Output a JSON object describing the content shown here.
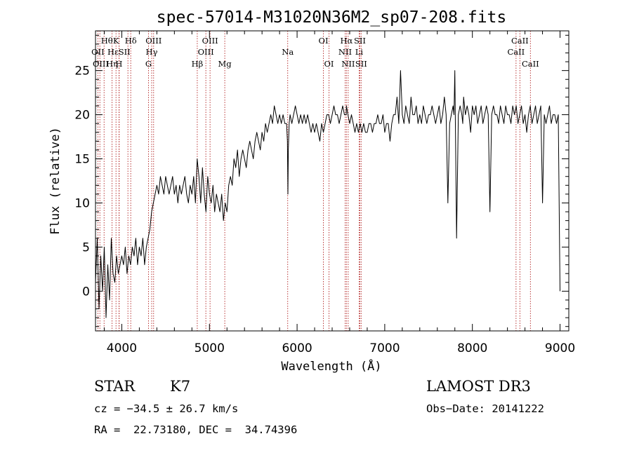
{
  "chart_data": {
    "type": "line",
    "title": "spec-57014-M31020N36M2_sp07-208.fits",
    "xlabel": "Wavelength (Å)",
    "ylabel": "Flux (relative)",
    "xlim": [
      3700,
      9100
    ],
    "ylim": [
      -4.5,
      29.5
    ],
    "xticks": [
      4000,
      5000,
      6000,
      7000,
      8000,
      9000
    ],
    "yticks": [
      0,
      5,
      10,
      15,
      20,
      25
    ],
    "x_minor_step": 200,
    "y_minor_step": 1,
    "grid": false,
    "series": [
      {
        "name": "flux",
        "color": "#000000",
        "x": [
          3700,
          3720,
          3740,
          3760,
          3780,
          3800,
          3820,
          3840,
          3860,
          3880,
          3900,
          3920,
          3940,
          3960,
          3980,
          4000,
          4020,
          4040,
          4060,
          4080,
          4100,
          4120,
          4140,
          4160,
          4180,
          4200,
          4220,
          4240,
          4260,
          4280,
          4300,
          4320,
          4340,
          4360,
          4380,
          4400,
          4420,
          4440,
          4460,
          4480,
          4500,
          4520,
          4540,
          4560,
          4580,
          4600,
          4620,
          4640,
          4660,
          4680,
          4700,
          4720,
          4740,
          4760,
          4780,
          4800,
          4820,
          4840,
          4860,
          4880,
          4900,
          4920,
          4940,
          4960,
          4980,
          5000,
          5020,
          5040,
          5060,
          5080,
          5100,
          5120,
          5140,
          5160,
          5180,
          5200,
          5220,
          5240,
          5260,
          5280,
          5300,
          5320,
          5340,
          5360,
          5380,
          5400,
          5420,
          5440,
          5460,
          5480,
          5500,
          5520,
          5540,
          5560,
          5580,
          5600,
          5620,
          5640,
          5660,
          5680,
          5700,
          5720,
          5740,
          5760,
          5780,
          5800,
          5820,
          5840,
          5860,
          5880,
          5890,
          5895,
          5900,
          5910,
          5920,
          5940,
          5960,
          5980,
          6000,
          6020,
          6040,
          6060,
          6080,
          6100,
          6120,
          6140,
          6160,
          6180,
          6200,
          6220,
          6240,
          6260,
          6280,
          6300,
          6320,
          6340,
          6360,
          6380,
          6400,
          6420,
          6440,
          6460,
          6480,
          6500,
          6520,
          6540,
          6560,
          6563,
          6580,
          6600,
          6620,
          6640,
          6660,
          6680,
          6700,
          6720,
          6740,
          6760,
          6780,
          6800,
          6820,
          6840,
          6860,
          6880,
          6900,
          6920,
          6940,
          6960,
          6980,
          7000,
          7020,
          7040,
          7060,
          7080,
          7100,
          7120,
          7140,
          7160,
          7180,
          7200,
          7220,
          7240,
          7260,
          7280,
          7300,
          7320,
          7340,
          7360,
          7380,
          7400,
          7420,
          7440,
          7460,
          7480,
          7500,
          7520,
          7540,
          7560,
          7580,
          7600,
          7620,
          7640,
          7660,
          7680,
          7700,
          7720,
          7740,
          7760,
          7780,
          7790,
          7800,
          7820,
          7840,
          7860,
          7880,
          7890,
          7900,
          7920,
          7940,
          7960,
          7980,
          8000,
          8020,
          8040,
          8060,
          8080,
          8100,
          8120,
          8140,
          8160,
          8180,
          8200,
          8220,
          8240,
          8260,
          8280,
          8300,
          8320,
          8340,
          8360,
          8380,
          8400,
          8420,
          8440,
          8460,
          8480,
          8500,
          8520,
          8540,
          8560,
          8580,
          8600,
          8620,
          8640,
          8660,
          8680,
          8700,
          8720,
          8740,
          8760,
          8780,
          8800,
          8820,
          8840,
          8860,
          8880,
          8900,
          8920,
          8940,
          8960,
          8980,
          9000
        ],
        "y": [
          1,
          6,
          -2,
          4,
          0,
          5,
          -3,
          3,
          -1,
          6,
          2,
          1,
          4,
          2,
          3,
          4,
          3,
          5,
          2,
          4,
          3,
          5,
          4,
          6,
          3,
          5,
          4,
          6,
          3,
          5,
          6,
          7,
          9,
          10,
          11,
          12,
          11,
          13,
          12,
          11,
          13,
          12,
          11,
          12,
          13,
          11,
          12,
          10,
          12,
          11,
          12,
          13,
          11,
          10,
          12,
          11,
          13,
          10,
          15,
          13,
          10,
          14,
          11,
          9,
          13,
          11,
          10,
          12,
          9,
          11,
          10,
          9,
          11,
          8,
          10,
          9,
          12,
          13,
          12,
          15,
          14,
          16,
          13,
          15,
          16,
          15,
          14,
          16,
          17,
          16,
          15,
          17,
          18,
          17,
          16,
          18,
          17,
          19,
          18,
          19,
          20,
          19,
          21,
          20,
          19,
          20,
          19,
          20,
          19,
          19,
          17,
          11,
          16,
          19,
          20,
          19,
          20,
          21,
          20,
          19,
          20,
          19,
          20,
          19,
          20,
          19,
          18,
          19,
          18,
          19,
          18,
          17,
          19,
          18,
          19,
          20,
          20,
          19,
          20,
          21,
          20,
          20,
          19,
          20,
          21,
          20,
          20,
          21,
          20,
          19,
          20,
          19,
          18,
          19,
          18,
          19,
          18,
          19,
          18,
          18,
          19,
          19,
          18,
          19,
          19,
          20,
          19,
          19,
          20,
          18,
          19,
          19,
          17,
          19,
          20,
          20,
          22,
          19,
          25,
          20,
          19,
          21,
          20,
          19,
          22,
          20,
          20,
          21,
          19,
          20,
          19,
          21,
          20,
          19,
          20,
          20,
          21,
          20,
          19,
          20,
          21,
          19,
          20,
          22,
          20,
          10,
          19,
          20,
          21,
          20,
          25,
          6,
          20,
          21,
          20,
          19,
          22,
          20,
          21,
          20,
          18,
          21,
          20,
          21,
          19,
          20,
          21,
          19,
          20,
          21,
          20,
          9,
          20,
          21,
          20,
          20,
          19,
          21,
          20,
          19,
          21,
          20,
          20,
          19,
          21,
          20,
          21,
          19,
          20,
          21,
          19,
          20,
          18,
          20,
          21,
          19,
          20,
          21,
          19,
          20,
          21,
          10,
          20,
          19,
          20,
          21,
          19,
          20,
          20,
          19,
          20,
          0
        ]
      }
    ],
    "lines": [
      {
        "name": "Hθ",
        "x": 3798
      },
      {
        "name": "OII",
        "x": 3727
      },
      {
        "name": "OIII",
        "x": 3750
      },
      {
        "name": "K",
        "x": 3934
      },
      {
        "name": "H",
        "x": 3968
      },
      {
        "name": "Hε",
        "x": 3970
      },
      {
        "name": "Hη",
        "x": 3889
      },
      {
        "name": "SII",
        "x": 4070
      },
      {
        "name": "Hδ",
        "x": 4102
      },
      {
        "name": "OIII",
        "x": 4363
      },
      {
        "name": "Hγ",
        "x": 4341
      },
      {
        "name": "G",
        "x": 4305
      },
      {
        "name": "Hβ",
        "x": 4861
      },
      {
        "name": "OIII",
        "x": 4959
      },
      {
        "name": "OIII",
        "x": 5007
      },
      {
        "name": "Mg",
        "x": 5175
      },
      {
        "name": "Na",
        "x": 5893
      },
      {
        "name": "OI",
        "x": 6300
      },
      {
        "name": "OI",
        "x": 6364
      },
      {
        "name": "NII",
        "x": 6548
      },
      {
        "name": "Hα",
        "x": 6563
      },
      {
        "name": "NII",
        "x": 6583
      },
      {
        "name": "Li",
        "x": 6708
      },
      {
        "name": "SII",
        "x": 6716
      },
      {
        "name": "SII",
        "x": 6731
      },
      {
        "name": "CaII",
        "x": 8498
      },
      {
        "name": "CaII",
        "x": 8542
      },
      {
        "name": "CaII",
        "x": 8662
      }
    ],
    "line_labels": [
      {
        "text": "Hθ",
        "x": 3830,
        "row": 1
      },
      {
        "text": "K",
        "x": 3934,
        "row": 1
      },
      {
        "text": "Hδ",
        "x": 4102,
        "row": 1
      },
      {
        "text": "OIII",
        "x": 4363,
        "row": 1
      },
      {
        "text": "OIII",
        "x": 5007,
        "row": 1
      },
      {
        "text": "OI",
        "x": 6300,
        "row": 1
      },
      {
        "text": "Hα",
        "x": 6563,
        "row": 1
      },
      {
        "text": "SII",
        "x": 6716,
        "row": 1
      },
      {
        "text": "CaII",
        "x": 8542,
        "row": 1
      },
      {
        "text": "OII",
        "x": 3727,
        "row": 2
      },
      {
        "text": "Hε",
        "x": 3900,
        "row": 2
      },
      {
        "text": "SII",
        "x": 4030,
        "row": 2
      },
      {
        "text": "Hγ",
        "x": 4341,
        "row": 2
      },
      {
        "text": "OIII",
        "x": 4959,
        "row": 2
      },
      {
        "text": "Na",
        "x": 5893,
        "row": 2
      },
      {
        "text": "NII",
        "x": 6548,
        "row": 2
      },
      {
        "text": "Li",
        "x": 6708,
        "row": 2
      },
      {
        "text": "CaII",
        "x": 8498,
        "row": 2
      },
      {
        "text": "OIII",
        "x": 3760,
        "row": 3
      },
      {
        "text": "Hη",
        "x": 3889,
        "row": 3
      },
      {
        "text": "H",
        "x": 3968,
        "row": 3
      },
      {
        "text": "G",
        "x": 4305,
        "row": 3
      },
      {
        "text": "Hβ",
        "x": 4861,
        "row": 3
      },
      {
        "text": "Mg",
        "x": 5175,
        "row": 3
      },
      {
        "text": "OI",
        "x": 6364,
        "row": 3
      },
      {
        "text": "NII",
        "x": 6583,
        "row": 3
      },
      {
        "text": "SII",
        "x": 6731,
        "row": 3
      },
      {
        "text": "CaII",
        "x": 8662,
        "row": 3
      }
    ],
    "line_color": "#b22222"
  },
  "info": {
    "star_label": "STAR",
    "spectral_type": "K7",
    "survey": "LAMOST DR3",
    "cz": "cz = −34.5 ± 26.7 km/s",
    "obs_date": "Obs−Date: 20141222",
    "coords": "RA =  22.73180, DEC =  34.74396"
  }
}
